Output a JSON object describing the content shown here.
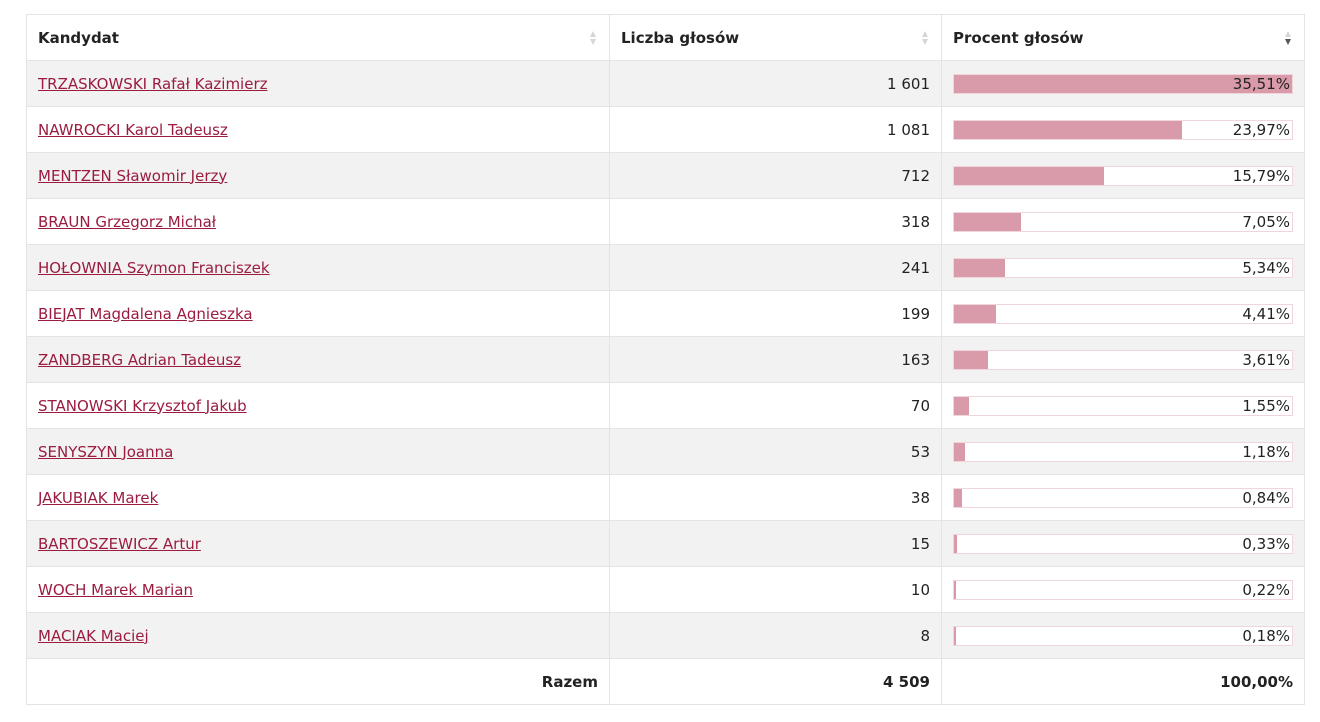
{
  "table": {
    "headers": [
      "Kandydat",
      "Liczba głosów",
      "Procent głosów"
    ],
    "rows": [
      {
        "name": "TRZASKOWSKI Rafał Kazimierz",
        "votes": "1 601",
        "percent": 35.51,
        "percent_label": "35,51%"
      },
      {
        "name": "NAWROCKI Karol Tadeusz",
        "votes": "1 081",
        "percent": 23.97,
        "percent_label": "23,97%"
      },
      {
        "name": "MENTZEN Sławomir Jerzy",
        "votes": "712",
        "percent": 15.79,
        "percent_label": "15,79%"
      },
      {
        "name": "BRAUN Grzegorz Michał",
        "votes": "318",
        "percent": 7.05,
        "percent_label": "7,05%"
      },
      {
        "name": "HOŁOWNIA Szymon Franciszek",
        "votes": "241",
        "percent": 5.34,
        "percent_label": "5,34%"
      },
      {
        "name": "BIEJAT Magdalena Agnieszka",
        "votes": "199",
        "percent": 4.41,
        "percent_label": "4,41%"
      },
      {
        "name": "ZANDBERG Adrian Tadeusz",
        "votes": "163",
        "percent": 3.61,
        "percent_label": "3,61%"
      },
      {
        "name": "STANOWSKI Krzysztof Jakub",
        "votes": "70",
        "percent": 1.55,
        "percent_label": "1,55%"
      },
      {
        "name": "SENYSZYN Joanna",
        "votes": "53",
        "percent": 1.18,
        "percent_label": "1,18%"
      },
      {
        "name": "JAKUBIAK Marek",
        "votes": "38",
        "percent": 0.84,
        "percent_label": "0,84%"
      },
      {
        "name": "BARTOSZEWICZ Artur",
        "votes": "15",
        "percent": 0.33,
        "percent_label": "0,33%"
      },
      {
        "name": "WOCH Marek Marian",
        "votes": "10",
        "percent": 0.22,
        "percent_label": "0,22%"
      },
      {
        "name": "MACIAK Maciej",
        "votes": "8",
        "percent": 0.18,
        "percent_label": "0,18%"
      }
    ],
    "footer": [
      "Razem",
      "4 509",
      "100,00%"
    ]
  }
}
